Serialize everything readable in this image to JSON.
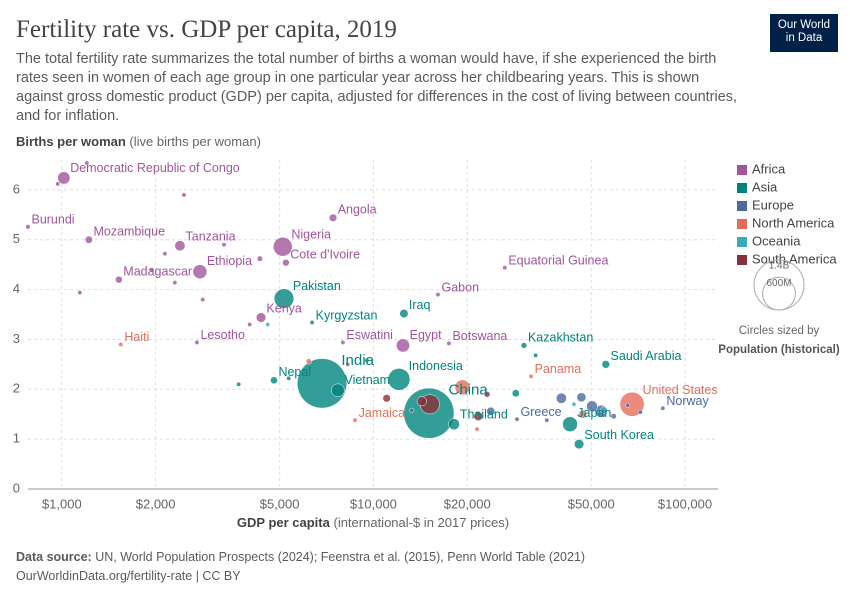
{
  "logo": [
    "Our World",
    "in Data"
  ],
  "chart_data": {
    "type": "scatter",
    "title": "Fertility rate vs. GDP per capita, 2019",
    "subtitle": "The total fertility rate summarizes the total number of births a woman would have, if she experienced the birth rates seen in women of each age group in one particular year across her childbearing years. This is shown against gross domestic product (GDP) per capita, adjusted for differences in the cost of living between countries, and for inflation.",
    "y_label": "Births per woman",
    "y_label_note": "(live births per woman)",
    "x_label": "GDP per capita",
    "x_label_note": "(international-$ in 2017 prices)",
    "x_log": true,
    "grid": true,
    "legend_position": "right",
    "xlim": [
      745,
      127600
    ],
    "ylim": [
      0,
      6.6
    ],
    "xticks": [
      {
        "value": 1000,
        "label": "$1,000"
      },
      {
        "value": 2000,
        "label": "$2,000"
      },
      {
        "value": 5000,
        "label": "$5,000"
      },
      {
        "value": 10000,
        "label": "$10,000"
      },
      {
        "value": 20000,
        "label": "$20,000"
      },
      {
        "value": 50000,
        "label": "$50,000"
      },
      {
        "value": 100000,
        "label": "$100,000"
      }
    ],
    "yticks": [
      0,
      1,
      2,
      3,
      4,
      5,
      6
    ],
    "size_legend": {
      "values": [
        {
          "value": 1400000000,
          "label": "1.4B"
        },
        {
          "value": 600000000,
          "label": "600M"
        }
      ],
      "title": "Circles sized by",
      "measure": "Population (historical)"
    },
    "series": [
      {
        "name": "Africa",
        "color": "#a2559c",
        "x": [
          1015,
          778,
          1221,
          2393,
          1524,
          2774,
          5117,
          5237,
          7420,
          4359,
          2714,
          7979,
          12440,
          17470,
          16110,
          26400,
          970,
          1203,
          2466,
          2142,
          3315,
          1944,
          1142,
          2305,
          2832,
          4320,
          4007,
          8275
        ],
        "values": [
          6.24,
          5.26,
          5.0,
          4.88,
          4.2,
          4.36,
          4.86,
          4.54,
          5.44,
          3.44,
          2.94,
          2.94,
          2.88,
          2.92,
          3.9,
          4.44,
          6.12,
          6.54,
          5.9,
          4.72,
          4.9,
          4.4,
          3.94,
          4.14,
          3.8,
          4.62,
          3.3,
          2.5
        ],
        "sizes": [
          87000000,
          12000000,
          31000000,
          59000000,
          27000000,
          112000000,
          201000000,
          26000000,
          32000000,
          52000000,
          2000000,
          1000000,
          100000000,
          2000000,
          2000000,
          1400000,
          5000000,
          4000000,
          5000000,
          8000000,
          4000000,
          6000000,
          3000000,
          9000000,
          2000000,
          17000000,
          4000000,
          6000000
        ],
        "labels": [
          "Democratic Republic of Congo",
          "Burundi",
          "Mozambique",
          "Tanzania",
          "Madagascar",
          "Ethiopia",
          "Nigeria",
          "Cote d'Ivoire",
          "Angola",
          "Kenya",
          "Lesotho",
          "Eswatini",
          "Egypt",
          "Botswana",
          "Gabon",
          "Equatorial Guinea",
          null,
          null,
          null,
          null,
          null,
          null,
          null,
          null,
          null,
          null,
          null,
          null
        ]
      },
      {
        "name": "Asia",
        "color": "#00847e",
        "x": [
          5164,
          6355,
          12530,
          30410,
          6840,
          4796,
          7690,
          12080,
          15070,
          18130,
          55690,
          42760,
          45710,
          3695,
          5346,
          9520,
          28640,
          33150
        ],
        "values": [
          3.82,
          3.34,
          3.52,
          2.88,
          2.12,
          2.18,
          1.98,
          2.2,
          1.52,
          1.3,
          2.5,
          1.3,
          0.9,
          2.1,
          2.22,
          2.58,
          1.92,
          2.68
        ],
        "sizes": [
          216000000,
          6500000,
          40000000,
          19000000,
          1380000000,
          28000000,
          96000000,
          270000000,
          1420000000,
          70000000,
          34000000,
          126000000,
          51000000,
          3000000,
          5000000,
          3000000,
          30000000,
          3000000
        ],
        "labels": [
          "Pakistan",
          "Kyrgyzstan",
          "Iraq",
          "Kazakhstan",
          "India",
          "Nepal",
          "Vietnam",
          "Indonesia",
          "China",
          "Thailand",
          "Saudi Arabia",
          "Japan",
          "South Korea",
          null,
          null,
          null,
          null,
          null
        ]
      },
      {
        "name": "Europe",
        "color": "#4c6a9c",
        "x": [
          28890,
          84880,
          13280,
          23800,
          40100,
          50300,
          53800,
          59000,
          65500,
          71900,
          46500,
          36000
        ],
        "values": [
          1.4,
          1.62,
          1.58,
          1.56,
          1.82,
          1.66,
          1.56,
          1.46,
          1.68,
          1.54,
          1.84,
          1.38
        ],
        "sizes": [
          10000000,
          5400000,
          7000000,
          38000000,
          60000000,
          67000000,
          83000000,
          17000000,
          8000000,
          5800000,
          47000000,
          10000000
        ],
        "labels": [
          "Greece",
          "Norway",
          null,
          null,
          null,
          null,
          null,
          null,
          null,
          null,
          null,
          null
        ]
      },
      {
        "name": "North America",
        "color": "#e56e5a",
        "x": [
          1546,
          32060,
          8730,
          67620,
          19300,
          6200,
          47000,
          21500
        ],
        "values": [
          2.9,
          2.26,
          1.38,
          1.7,
          2.04,
          2.56,
          1.5,
          1.2
        ],
        "sizes": [
          11000000,
          4000000,
          2900000,
          330000000,
          126000000,
          17000000,
          37000000,
          3000000
        ],
        "labels": [
          "Haiti",
          "Panama",
          "Jamaica",
          "United States",
          null,
          null,
          null,
          null
        ]
      },
      {
        "name": "Oceania",
        "color": "#38aaba",
        "x": [
          54900,
          44000,
          4580
        ],
        "values": [
          1.58,
          1.7,
          3.3
        ],
        "sizes": [
          25000000,
          5000000,
          9000000
        ],
        "labels": [
          null,
          null,
          null
        ]
      },
      {
        "name": "South America",
        "color": "#883039",
        "x": [
          15170,
          14300,
          23170,
          11030,
          21700
        ],
        "values": [
          1.7,
          1.76,
          1.9,
          1.82,
          1.46
        ],
        "sizes": [
          211000000,
          50000000,
          19000000,
          33000000,
          45000000
        ],
        "labels": [
          null,
          null,
          null,
          null,
          null
        ]
      }
    ],
    "source_label": "Data source:",
    "source": "UN, World Population Prospects (2024); Feenstra et al. (2015), Penn World Table (2021)",
    "url": "OurWorldinData.org/fertility-rate | CC BY"
  }
}
